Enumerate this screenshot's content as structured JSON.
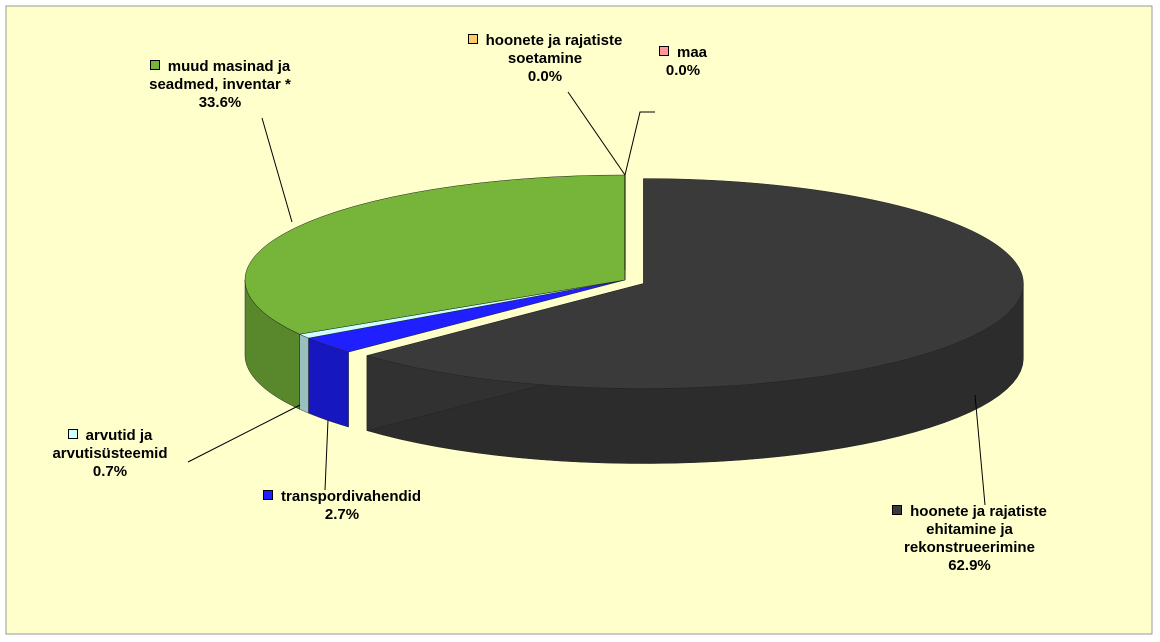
{
  "chart_data": {
    "type": "pie",
    "categories": [
      "hoonete ja rajatiste ehitamine ja rekonstrueerimine",
      "transpordivahendid",
      "arvutid ja arvutisüsteemid",
      "muud masinad ja seadmed, inventar *",
      "hoonete ja rajatiste soetamine",
      "maa"
    ],
    "values": [
      62.9,
      2.7,
      0.7,
      33.6,
      0,
      0
    ],
    "value_labels": [
      "62.9%",
      "2.7%",
      "0.7%",
      "33.6%",
      "0.0%",
      "0.0%"
    ],
    "colors": [
      "#3a3a3a",
      "#1f1fff",
      "#ccffff",
      "#77b53a",
      "#ffcc66",
      "#ff9999"
    ]
  }
}
